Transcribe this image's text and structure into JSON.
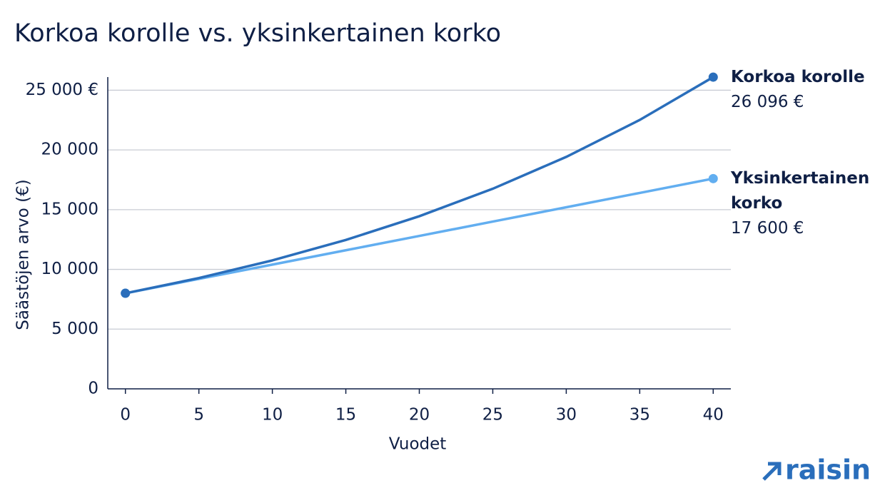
{
  "chart_data": {
    "type": "line",
    "title": "Korkoa korolle vs. yksinkertainen korko",
    "x_label": "Vuodet",
    "y_label": "Säästöjen arvo (€)",
    "x": [
      0,
      5,
      10,
      15,
      20,
      25,
      30,
      35,
      40
    ],
    "series": [
      {
        "name": "Korkoa korolle",
        "color": "#2a6ebb",
        "values": [
          8000,
          9274,
          10751,
          12464,
          14449,
          16750,
          19418,
          22511,
          26096
        ],
        "value_labels": [
          null,
          null,
          null,
          null,
          null,
          null,
          null,
          null,
          "26 096 €"
        ]
      },
      {
        "name": "Yksinkertainen korko",
        "color": "#62aef0",
        "values": [
          8000,
          9200,
          10400,
          11600,
          12800,
          14000,
          15200,
          16400,
          17600
        ],
        "value_labels": [
          null,
          null,
          null,
          null,
          null,
          null,
          null,
          null,
          "17 600 €"
        ]
      }
    ],
    "xlim": [
      -1.2,
      41.2
    ],
    "xticks": [
      0,
      5,
      10,
      15,
      20,
      25,
      30,
      35,
      40
    ],
    "ylim": [
      0,
      26100
    ],
    "yticks": [
      0,
      {
        "value": 5000,
        "label": "5 000"
      },
      {
        "value": 10000,
        "label": "10 000"
      },
      {
        "value": 15000,
        "label": "15 000"
      },
      {
        "value": 20000,
        "label": "20 000"
      },
      {
        "value": 25000,
        "label": "25 000 €"
      }
    ],
    "grid": true,
    "logo": "raisin"
  }
}
